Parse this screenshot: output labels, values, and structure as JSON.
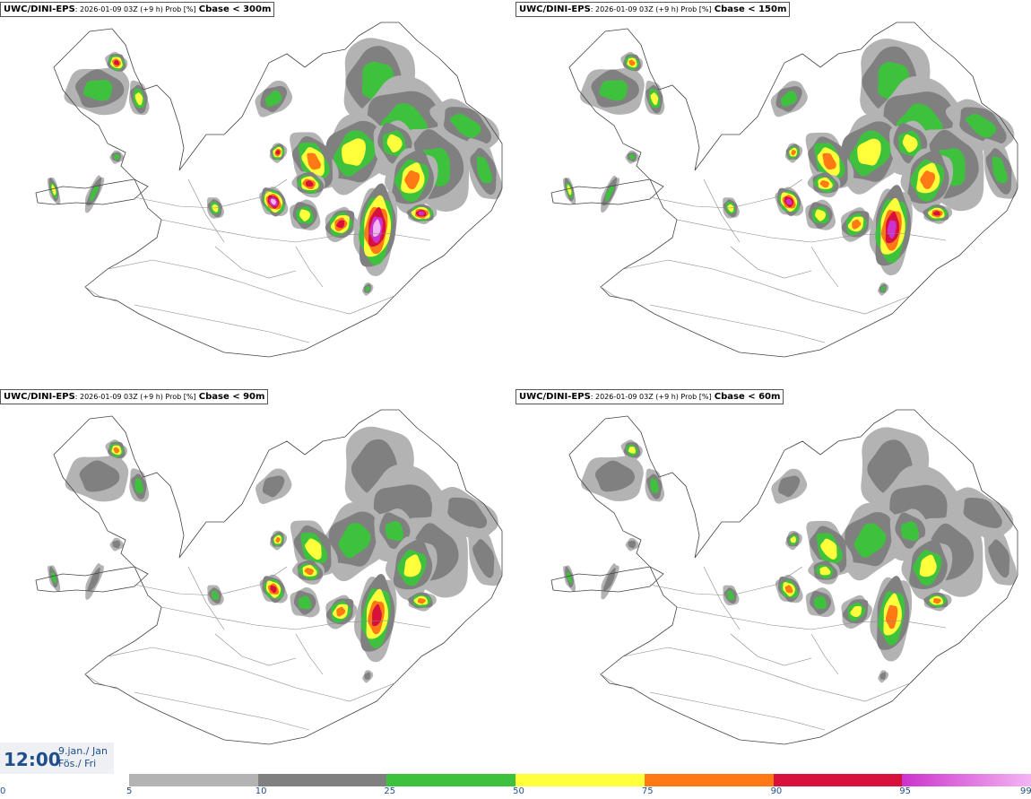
{
  "panels": [
    {
      "model": "UWC/DINI-EPS",
      "run": ": 2026-01-09 03Z (+9 h) Prob [%]",
      "field": "Cbase < 300m",
      "intensity": 1.0
    },
    {
      "model": "UWC/DINI-EPS",
      "run": ": 2026-01-09 03Z (+9 h) Prob [%]",
      "field": "Cbase < 150m",
      "intensity": 0.9
    },
    {
      "model": "UWC/DINI-EPS",
      "run": ": 2026-01-09 03Z (+9 h) Prob [%]",
      "field": "Cbase < 90m",
      "intensity": 0.8
    },
    {
      "model": "UWC/DINI-EPS",
      "run": ": 2026-01-09 03Z (+9 h) Prob [%]",
      "field": "Cbase < 60m",
      "intensity": 0.7
    }
  ],
  "valid_time": {
    "time": "12:00",
    "date_line1": "9.jan./ Jan",
    "date_line2": "Fös./ Fri"
  },
  "legend": {
    "zero_label": "0",
    "ticks": [
      "5",
      "10",
      "25",
      "50",
      "75",
      "90",
      "95",
      "99"
    ],
    "classes": [
      {
        "range": "5-10",
        "color": "#b3b3b3"
      },
      {
        "range": "10-25",
        "color": "#808080"
      },
      {
        "range": "25-50",
        "color": "#3ec23e"
      },
      {
        "range": "50-75",
        "color": "#ffff3c"
      },
      {
        "range": "75-90",
        "color": "#ff7a14"
      },
      {
        "range": "90-95",
        "color": "#d8103c"
      },
      {
        "range": "95-99",
        "color": "#cc33cc"
      }
    ],
    "gradient_end": "#f3b5f3"
  }
}
